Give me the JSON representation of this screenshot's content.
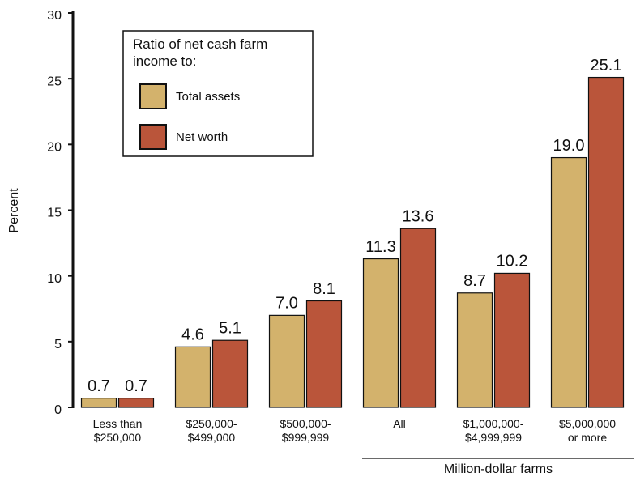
{
  "chart_data": {
    "type": "bar",
    "ylabel": "Percent",
    "categories": [
      "Less than\n$250,000",
      "$250,000-\n$499,000",
      "$500,000-\n$999,999",
      "All",
      "$1,000,000-\n$4,999,999",
      "$5,000,000\nor more"
    ],
    "series": [
      {
        "name": "Total assets",
        "color": "#d3b26c",
        "values": [
          0.7,
          4.6,
          7.0,
          11.3,
          8.7,
          19.0
        ],
        "value_labels": [
          "0.7",
          "4.6",
          "7.0",
          "11.3",
          "8.7",
          "19.0"
        ]
      },
      {
        "name": "Net worth",
        "color": "#ba553a",
        "values": [
          0.7,
          5.1,
          8.1,
          13.6,
          10.2,
          25.1
        ],
        "value_labels": [
          "0.7",
          "5.1",
          "8.1",
          "13.6",
          "10.2",
          "25.1"
        ]
      }
    ],
    "legend_title": "Ratio of net cash farm income to:",
    "annotation": "Million-dollar farms",
    "ylim": [
      0,
      30
    ],
    "yticks": [
      0,
      5,
      10,
      15,
      20,
      25,
      30
    ]
  }
}
